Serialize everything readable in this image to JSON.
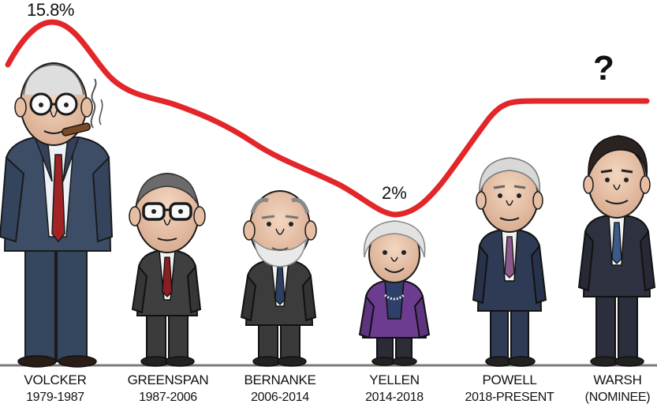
{
  "curve_labels": {
    "peak": "15.8%",
    "trough": "2%",
    "unknown": "?"
  },
  "colors": {
    "curve": "#e2262a",
    "ground": "#7a7a7a",
    "suit_dark": "#3a3a3a",
    "suit_navy": "#2f3b55",
    "yellen_jacket": "#6b3c8f"
  },
  "figures": [
    {
      "name": "VOLCKER",
      "term": "1979-1987",
      "icon": "volcker-caricature"
    },
    {
      "name": "GREENSPAN",
      "term": "1987-2006",
      "icon": "greenspan-caricature"
    },
    {
      "name": "BERNANKE",
      "term": "2006-2014",
      "icon": "bernanke-caricature"
    },
    {
      "name": "YELLEN",
      "term": "2014-2018",
      "icon": "yellen-caricature"
    },
    {
      "name": "POWELL",
      "term": "2018-PRESENT",
      "icon": "powell-caricature"
    },
    {
      "name": "WARSH",
      "term": "(NOMINEE)",
      "icon": "warsh-caricature"
    }
  ]
}
